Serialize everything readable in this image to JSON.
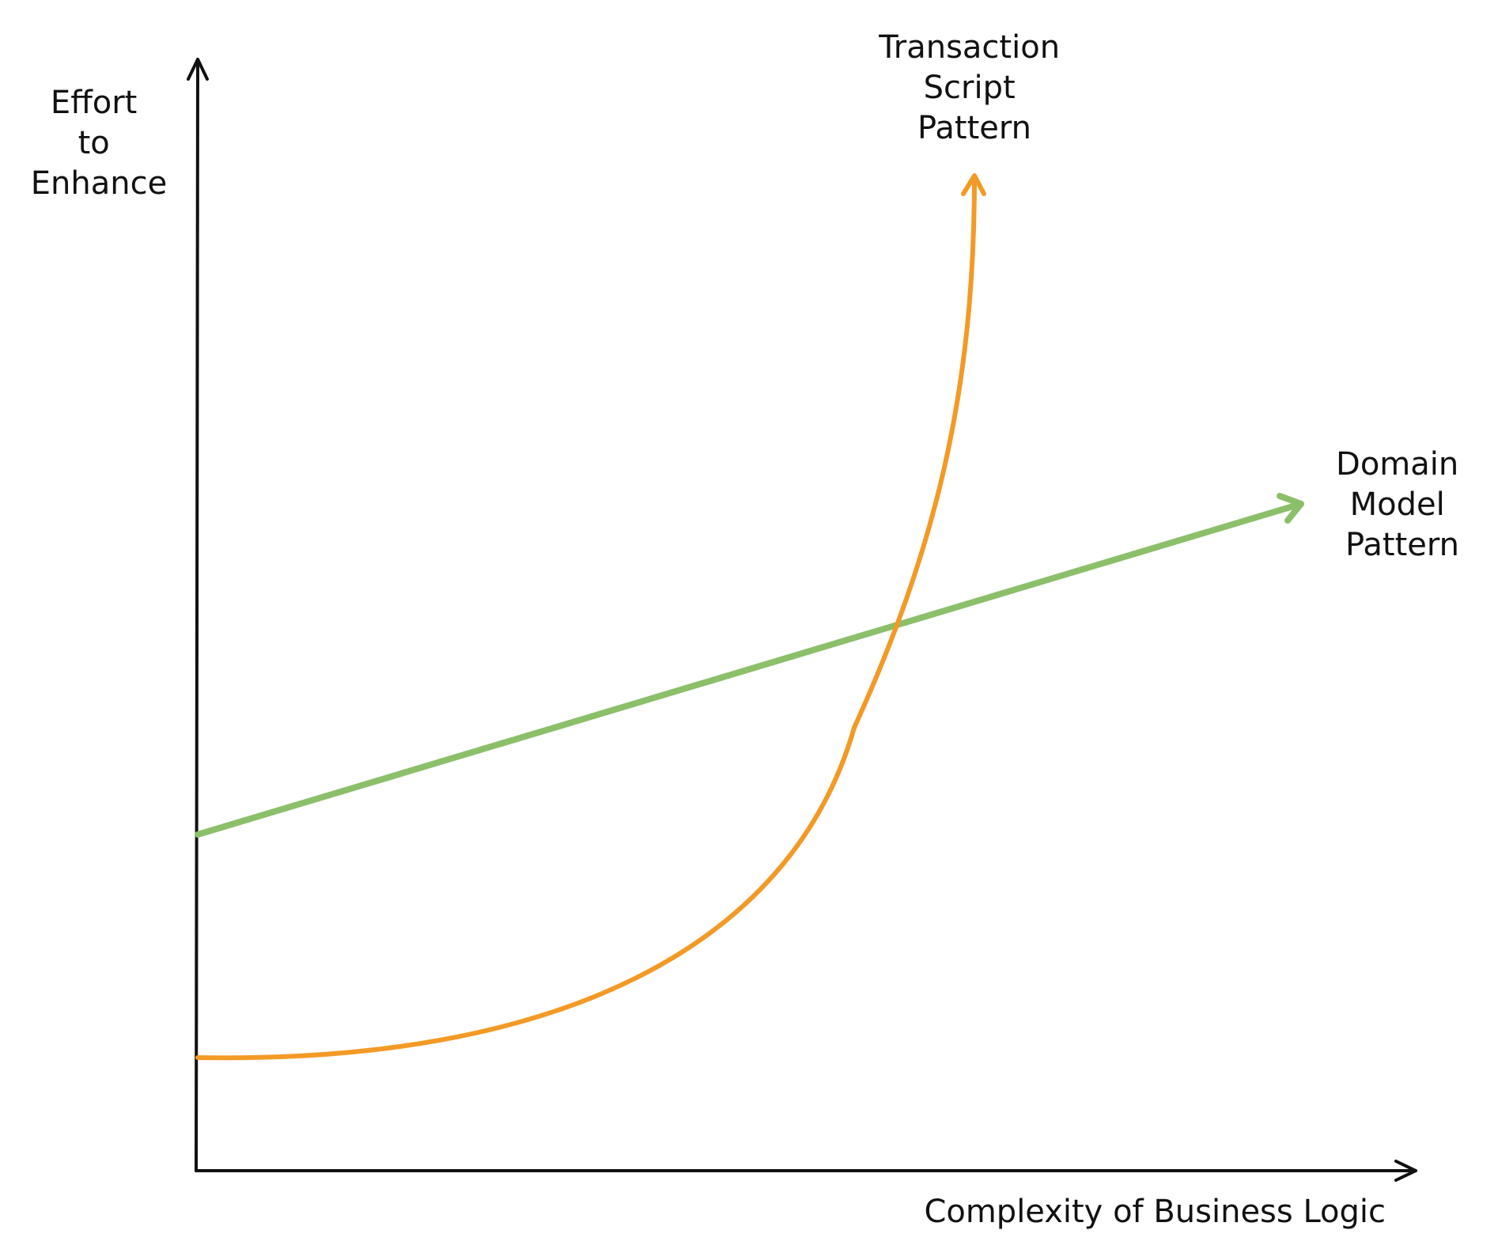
{
  "y_axis_label": [
    "Effort",
    "to",
    "Enhance"
  ],
  "x_axis_label": "Complexity of Business Logic",
  "series": [
    {
      "label": [
        "Transaction",
        "Script",
        "Pattern"
      ],
      "color": "#F39A26",
      "shape": "exponential"
    },
    {
      "label": [
        "Domain",
        "Model",
        "Pattern"
      ],
      "color": "#8CBF6A",
      "shape": "linear"
    }
  ],
  "colors": {
    "axis": "#111111",
    "text": "#111111"
  }
}
